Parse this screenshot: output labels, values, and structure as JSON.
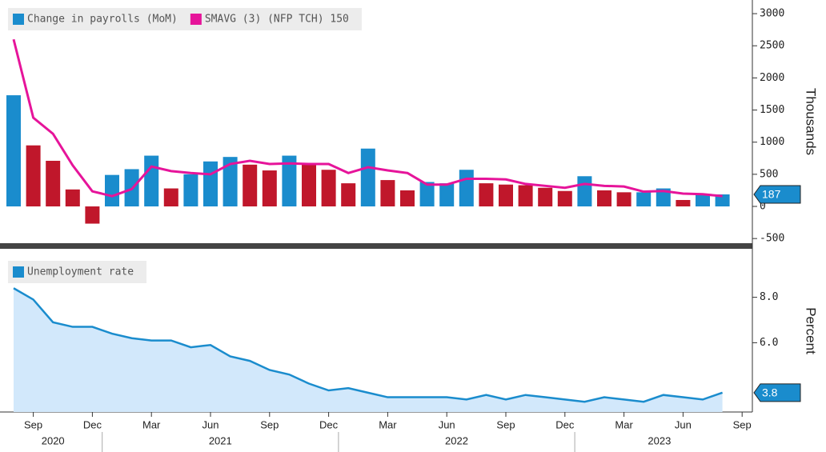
{
  "chart_data": [
    {
      "type": "bar_line",
      "categories": [
        null,
        "Sep",
        null,
        null,
        "Dec",
        null,
        null,
        "Mar",
        null,
        null,
        "Jun",
        null,
        null,
        "Sep",
        null,
        null,
        "Dec",
        null,
        null,
        "Mar",
        null,
        null,
        "Jun",
        null,
        null,
        "Sep",
        null,
        null,
        "Dec",
        null,
        null,
        "Mar",
        null,
        null,
        "Jun",
        null,
        null,
        "Sep"
      ],
      "year_labels": [
        "2020",
        "2021",
        "2022",
        "2023"
      ],
      "y_label": "Thousands",
      "ylim": [
        -560,
        3200
      ],
      "yticks": [
        3000,
        2500,
        2000,
        1500,
        1000,
        500,
        0,
        -500
      ],
      "series": [
        {
          "name": "Change in payrolls (MoM)",
          "color": "#1a8ccd",
          "colors": [
            "#1a8ccd",
            "#c0172b",
            "#c0172b",
            "#c0172b",
            "#c0172b",
            "#1a8ccd",
            "#1a8ccd",
            "#1a8ccd",
            "#c0172b",
            "#1a8ccd",
            "#1a8ccd",
            "#1a8ccd",
            "#c0172b",
            "#c0172b",
            "#1a8ccd",
            "#c0172b",
            "#c0172b",
            "#c0172b",
            "#1a8ccd",
            "#c0172b",
            "#c0172b",
            "#1a8ccd",
            "#1a8ccd",
            "#1a8ccd",
            "#c0172b",
            "#c0172b",
            "#c0172b",
            "#c0172b",
            "#c0172b",
            "#1a8ccd",
            "#c0172b",
            "#c0172b",
            "#1a8ccd",
            "#1a8ccd",
            "#c0172b",
            "#1a8ccd",
            "#1a8ccd",
            null
          ],
          "values": [
            1730,
            950,
            710,
            264,
            -268,
            490,
            580,
            790,
            280,
            500,
            700,
            770,
            650,
            560,
            790,
            650,
            570,
            360,
            900,
            410,
            250,
            380,
            360,
            570,
            360,
            340,
            330,
            290,
            240,
            470,
            250,
            220,
            220,
            280,
            100,
            180,
            187,
            null
          ]
        },
        {
          "name": "SMAVG (3) (NFP TCH) 150",
          "color": "#e6149a",
          "values": [
            2600,
            1380,
            1130,
            640,
            235,
            160,
            270,
            620,
            550,
            520,
            500,
            660,
            710,
            660,
            670,
            660,
            660,
            520,
            610,
            560,
            520,
            340,
            340,
            430,
            430,
            420,
            350,
            320,
            290,
            350,
            320,
            310,
            230,
            240,
            200,
            190,
            160,
            null
          ]
        }
      ]
    },
    {
      "type": "area",
      "y_label": "Percent",
      "ylim": [
        2.95,
        10.1
      ],
      "yticks": [
        {
          "value": 8,
          "label": "8.0"
        },
        {
          "value": 6,
          "label": "6.0"
        }
      ],
      "series": [
        {
          "name": "Unemployment rate",
          "color": "#1a8ccd",
          "values": [
            8.4,
            7.9,
            6.9,
            6.7,
            6.7,
            6.4,
            6.2,
            6.1,
            6.1,
            5.8,
            5.9,
            5.4,
            5.2,
            4.8,
            4.6,
            4.2,
            3.9,
            4.0,
            3.8,
            3.6,
            3.6,
            3.6,
            3.6,
            3.5,
            3.7,
            3.5,
            3.7,
            3.6,
            3.5,
            3.4,
            3.6,
            3.5,
            3.4,
            3.7,
            3.6,
            3.5,
            3.8,
            null
          ]
        }
      ]
    }
  ]
}
